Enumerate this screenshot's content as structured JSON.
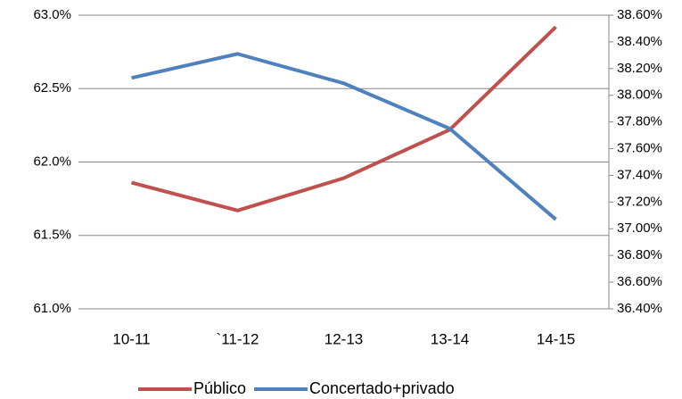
{
  "chart_data": {
    "type": "line",
    "categories": [
      "10-11",
      "`11-12",
      "12-13",
      "13-14",
      "14-15"
    ],
    "series": [
      {
        "name": "Público",
        "color": "#c0504d",
        "values": [
          61.86,
          61.67,
          61.89,
          62.22,
          62.92
        ]
      },
      {
        "name": "Concertado+privado",
        "color": "#4f81bd",
        "axis": "y2",
        "values": [
          38.13,
          38.31,
          38.09,
          37.75,
          37.07
        ]
      }
    ],
    "ylim": [
      61.0,
      63.0
    ],
    "yticks": [
      {
        "value": 61.0,
        "label": "61.0%"
      },
      {
        "value": 61.5,
        "label": "61.5%"
      },
      {
        "value": 62.0,
        "label": "62.0%"
      },
      {
        "value": 62.5,
        "label": "62.5%"
      },
      {
        "value": 63.0,
        "label": "63.0%"
      }
    ],
    "y2lim": [
      36.4,
      38.6
    ],
    "y2ticks": [
      {
        "value": 36.4,
        "label": "36.40%"
      },
      {
        "value": 36.6,
        "label": "36.60%"
      },
      {
        "value": 36.8,
        "label": "36.80%"
      },
      {
        "value": 37.0,
        "label": "37.00%"
      },
      {
        "value": 37.2,
        "label": "37.20%"
      },
      {
        "value": 37.4,
        "label": "37.40%"
      },
      {
        "value": 37.6,
        "label": "37.60%"
      },
      {
        "value": 37.8,
        "label": "37.80%"
      },
      {
        "value": 38.0,
        "label": "38.00%"
      },
      {
        "value": 38.2,
        "label": "38.20%"
      },
      {
        "value": 38.4,
        "label": "38.40%"
      },
      {
        "value": 38.6,
        "label": "38.60%"
      }
    ],
    "grid": true,
    "legend": "bottom"
  }
}
